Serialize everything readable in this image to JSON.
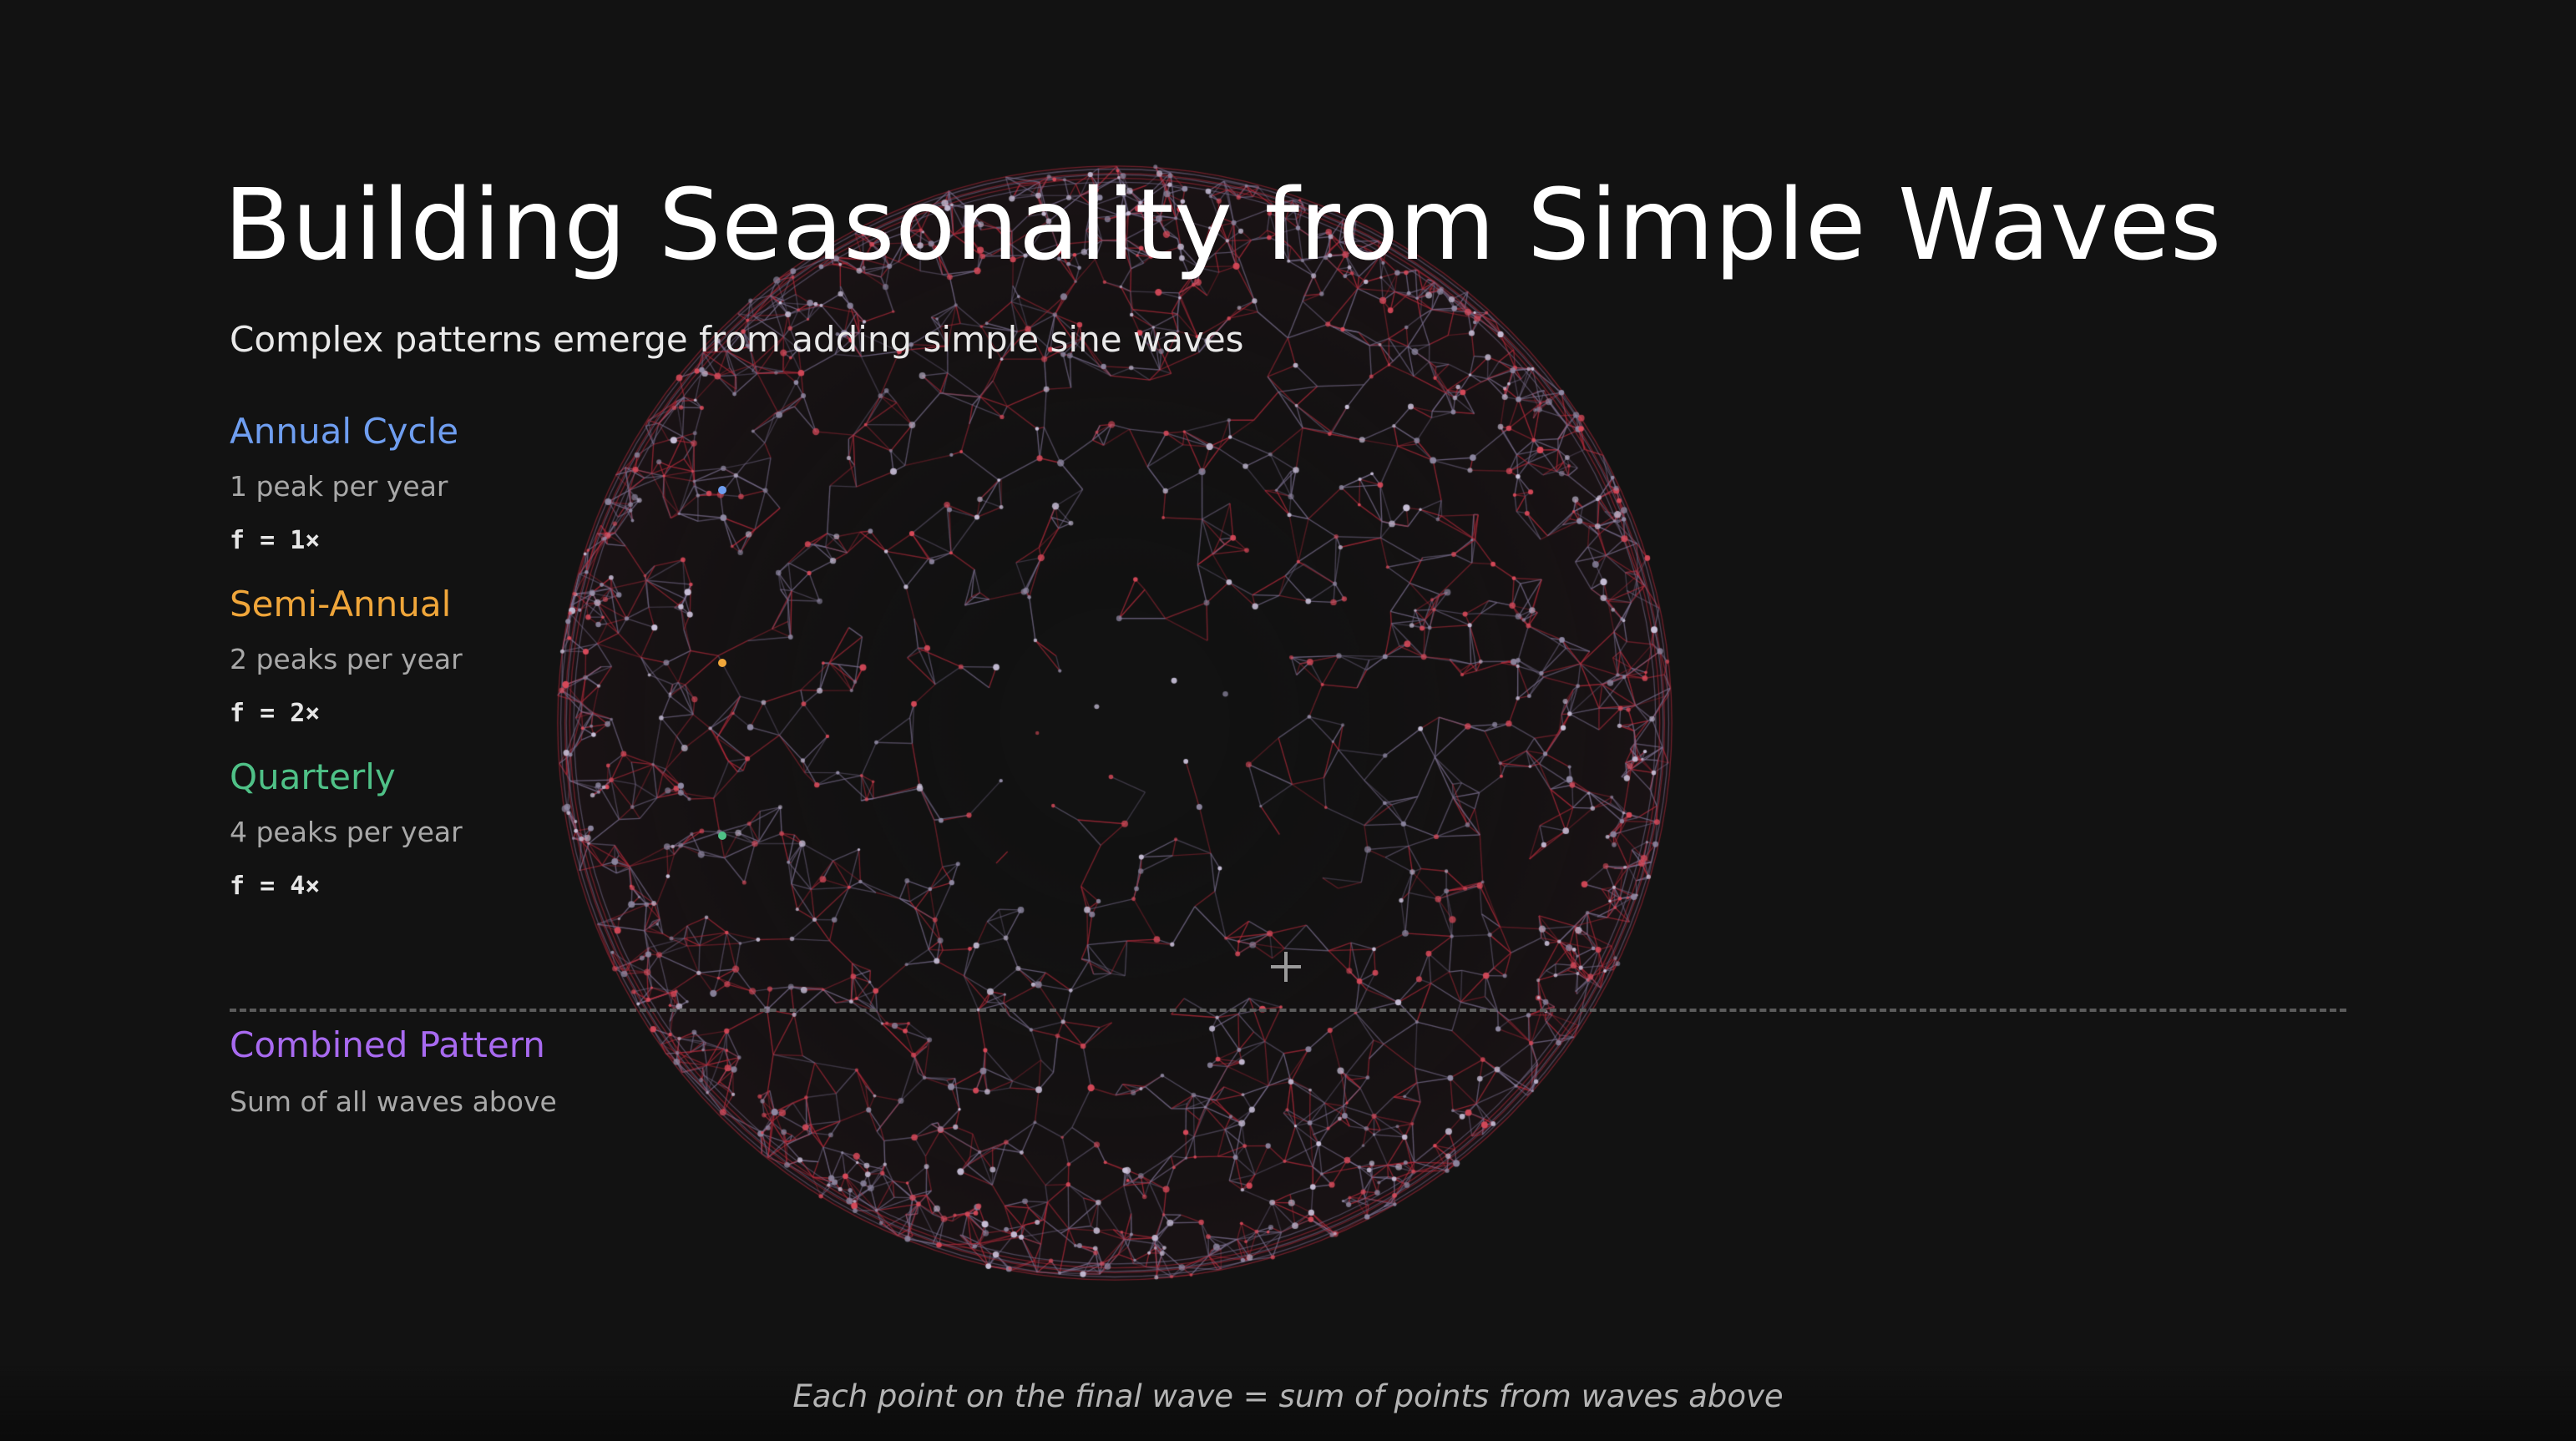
{
  "header": {
    "title": "Building Seasonality from Simple Waves",
    "subtitle": "Complex patterns emerge from adding simple sine waves"
  },
  "waves": [
    {
      "name": "Annual Cycle",
      "description": "1 peak per year",
      "formula": "f = 1×",
      "color": "#6f9ef0"
    },
    {
      "name": "Semi-Annual",
      "description": "2 peaks per year",
      "formula": "f = 2×",
      "color": "#f0a63a"
    },
    {
      "name": "Quarterly",
      "description": "4 peaks per year",
      "formula": "f = 4×",
      "color": "#4fc187"
    }
  ],
  "combined": {
    "name": "Combined Pattern",
    "description": "Sum of all waves above",
    "color": "#a86af0"
  },
  "footnote": "Each point on the final wave = sum of points from waves above",
  "globe": {
    "edge_colors": [
      "#b02a3a",
      "#7a6f8f"
    ],
    "node_colors": [
      "#d94a5a",
      "#c8c0d8",
      "#8f89a3"
    ]
  }
}
